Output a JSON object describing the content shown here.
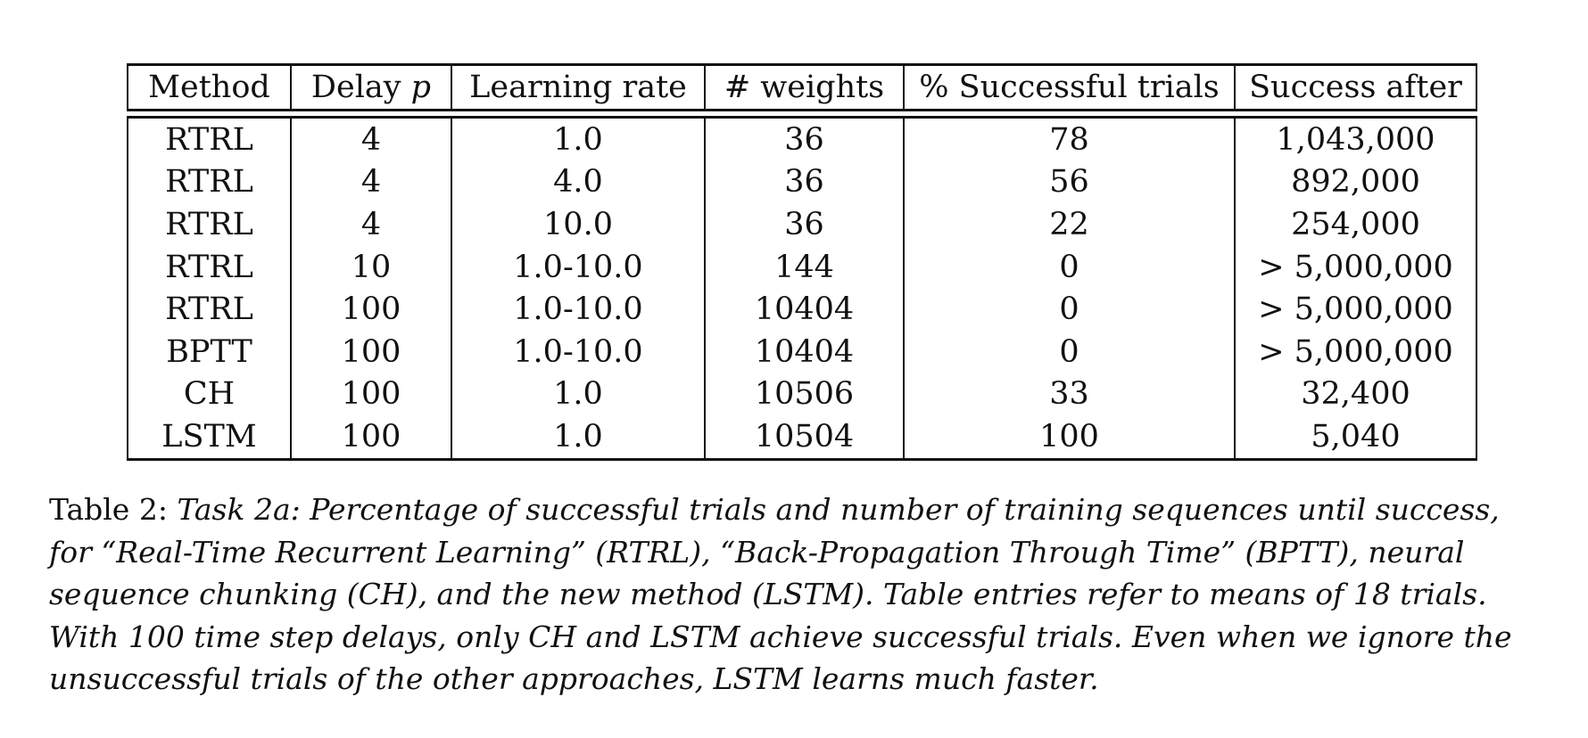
{
  "table": {
    "headers": {
      "method": "Method",
      "delay_prefix": "Delay ",
      "delay_var": "p",
      "learning_rate": "Learning rate",
      "weights": "# weights",
      "successful_trials": "% Successful trials",
      "success_after": "Success after"
    },
    "rows": [
      {
        "method": "RTRL",
        "delay": "4",
        "learning_rate": "1.0",
        "weights": "36",
        "successful": "78",
        "success_after": "1,043,000"
      },
      {
        "method": "RTRL",
        "delay": "4",
        "learning_rate": "4.0",
        "weights": "36",
        "successful": "56",
        "success_after": "892,000"
      },
      {
        "method": "RTRL",
        "delay": "4",
        "learning_rate": "10.0",
        "weights": "36",
        "successful": "22",
        "success_after": "254,000"
      },
      {
        "method": "RTRL",
        "delay": "10",
        "learning_rate": "1.0-10.0",
        "weights": "144",
        "successful": "0",
        "success_after": "> 5,000,000"
      },
      {
        "method": "RTRL",
        "delay": "100",
        "learning_rate": "1.0-10.0",
        "weights": "10404",
        "successful": "0",
        "success_after": "> 5,000,000"
      },
      {
        "method": "BPTT",
        "delay": "100",
        "learning_rate": "1.0-10.0",
        "weights": "10404",
        "successful": "0",
        "success_after": "> 5,000,000"
      },
      {
        "method": "CH",
        "delay": "100",
        "learning_rate": "1.0",
        "weights": "10506",
        "successful": "33",
        "success_after": "32,400"
      },
      {
        "method": "LSTM",
        "delay": "100",
        "learning_rate": "1.0",
        "weights": "10504",
        "successful": "100",
        "success_after": "5,040"
      }
    ]
  },
  "caption": {
    "label": "Table 2:",
    "lines": [
      "Task 2a: Percentage of successful trials and number of training sequences until success,",
      "for “Real-Time Recurrent Learning” (RTRL), “Back-Propagation Through Time” (BPTT), neural",
      "sequence chunking (CH), and the new method (LSTM). Table entries refer to means of 18 trials.",
      "With 100 time step delays, only CH and LSTM achieve successful trials. Even when we ignore the",
      "unsuccessful trials of the other approaches, LSTM learns much faster."
    ]
  }
}
